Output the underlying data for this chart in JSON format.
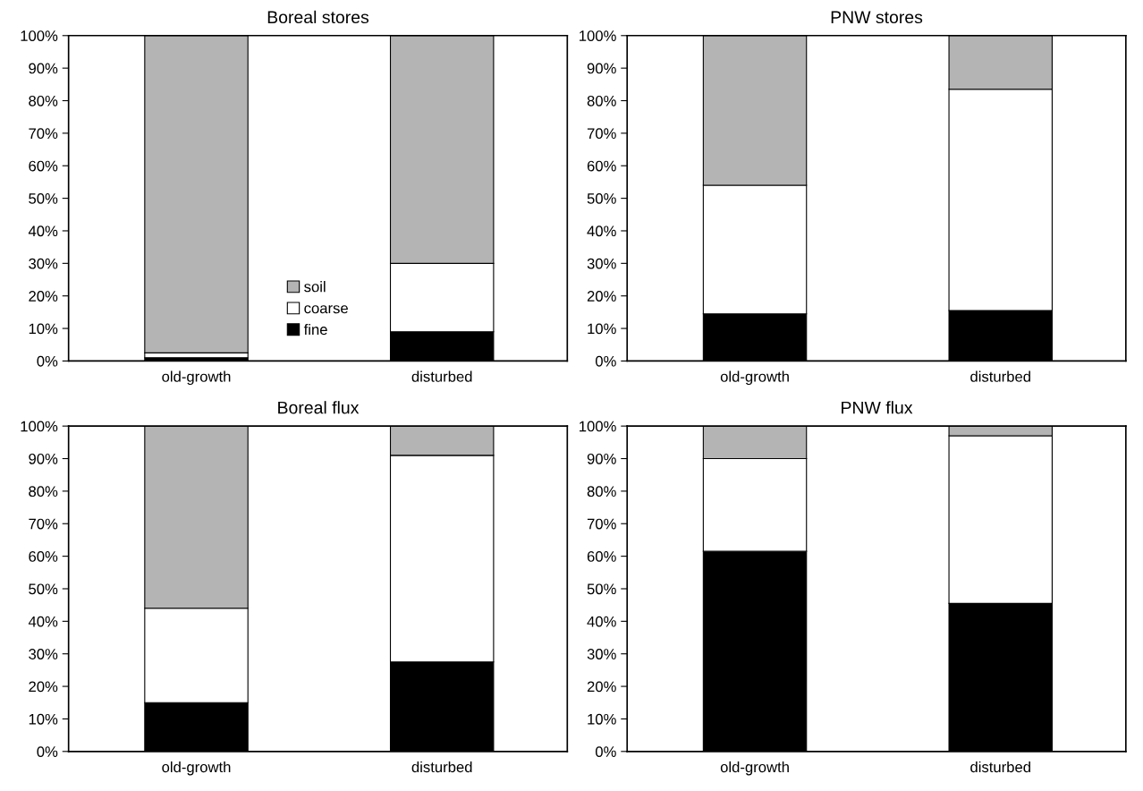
{
  "chart_data": [
    {
      "type": "bar",
      "title": "Boreal stores",
      "stacked": true,
      "categories": [
        "old-growth",
        "disturbed"
      ],
      "series": [
        {
          "name": "fine",
          "color": "#000000",
          "values": [
            1,
            9
          ]
        },
        {
          "name": "coarse",
          "color": "#ffffff",
          "values": [
            1.5,
            21
          ]
        },
        {
          "name": "soil",
          "color": "#b4b4b4",
          "values": [
            97.5,
            70
          ]
        }
      ],
      "ylim": [
        0,
        100
      ],
      "yticks": [
        {
          "value": 0,
          "label": "0%"
        },
        {
          "value": 10,
          "label": "10%"
        },
        {
          "value": 20,
          "label": "20%"
        },
        {
          "value": 30,
          "label": "30%"
        },
        {
          "value": 40,
          "label": "40%"
        },
        {
          "value": 50,
          "label": "50%"
        },
        {
          "value": 60,
          "label": "60%"
        },
        {
          "value": 70,
          "label": "70%"
        },
        {
          "value": 80,
          "label": "80%"
        },
        {
          "value": 90,
          "label": "90%"
        },
        {
          "value": 100,
          "label": "100%"
        }
      ],
      "grid": false,
      "legend": "bottom"
    },
    {
      "type": "bar",
      "title": "PNW stores",
      "stacked": true,
      "categories": [
        "old-growth",
        "disturbed"
      ],
      "series": [
        {
          "color": "#000000",
          "values": [
            14.5,
            15.5
          ]
        },
        {
          "color": "#ffffff",
          "values": [
            39.5,
            68
          ]
        },
        {
          "color": "#b4b4b4",
          "values": [
            46,
            16.5
          ]
        }
      ],
      "ylim": [
        0,
        100
      ],
      "yticks": [
        {
          "value": 0,
          "label": "0%"
        },
        {
          "value": 10,
          "label": "10%"
        },
        {
          "value": 20,
          "label": "20%"
        },
        {
          "value": 30,
          "label": "30%"
        },
        {
          "value": 40,
          "label": "40%"
        },
        {
          "value": 50,
          "label": "50%"
        },
        {
          "value": 60,
          "label": "60%"
        },
        {
          "value": 70,
          "label": "70%"
        },
        {
          "value": 80,
          "label": "80%"
        },
        {
          "value": 90,
          "label": "90%"
        },
        {
          "value": 100,
          "label": "100%"
        }
      ],
      "grid": false
    },
    {
      "type": "bar",
      "title": "Boreal flux",
      "stacked": true,
      "categories": [
        "old-growth",
        "disturbed"
      ],
      "series": [
        {
          "color": "#000000",
          "values": [
            15,
            27.5
          ]
        },
        {
          "color": "#ffffff",
          "values": [
            29,
            63.5
          ]
        },
        {
          "color": "#b4b4b4",
          "values": [
            56,
            9
          ]
        }
      ],
      "ylim": [
        0,
        100
      ],
      "yticks": [
        {
          "value": 0,
          "label": "0%"
        },
        {
          "value": 10,
          "label": "10%"
        },
        {
          "value": 20,
          "label": "20%"
        },
        {
          "value": 30,
          "label": "30%"
        },
        {
          "value": 40,
          "label": "40%"
        },
        {
          "value": 50,
          "label": "50%"
        },
        {
          "value": 60,
          "label": "60%"
        },
        {
          "value": 70,
          "label": "70%"
        },
        {
          "value": 80,
          "label": "80%"
        },
        {
          "value": 90,
          "label": "90%"
        },
        {
          "value": 100,
          "label": "100%"
        }
      ],
      "grid": false
    },
    {
      "type": "bar",
      "title": "PNW flux",
      "stacked": true,
      "categories": [
        "old-growth",
        "disturbed"
      ],
      "series": [
        {
          "color": "#000000",
          "values": [
            61.5,
            45.5
          ]
        },
        {
          "color": "#ffffff",
          "values": [
            28.5,
            51.5
          ]
        },
        {
          "color": "#b4b4b4",
          "values": [
            10,
            3
          ]
        }
      ],
      "ylim": [
        0,
        100
      ],
      "yticks": [
        {
          "value": 0,
          "label": "0%"
        },
        {
          "value": 10,
          "label": "10%"
        },
        {
          "value": 20,
          "label": "20%"
        },
        {
          "value": 30,
          "label": "30%"
        },
        {
          "value": 40,
          "label": "40%"
        },
        {
          "value": 50,
          "label": "50%"
        },
        {
          "value": 60,
          "label": "60%"
        },
        {
          "value": 70,
          "label": "70%"
        },
        {
          "value": 80,
          "label": "80%"
        },
        {
          "value": 90,
          "label": "90%"
        },
        {
          "value": 100,
          "label": "100%"
        }
      ],
      "grid": false
    }
  ]
}
